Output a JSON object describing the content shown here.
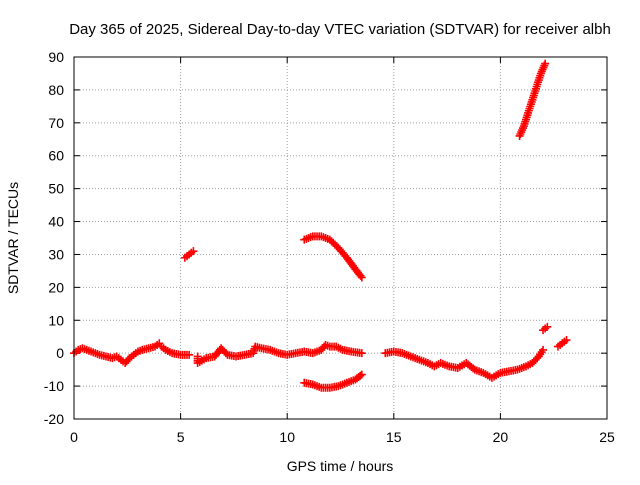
{
  "chart_data": {
    "type": "scatter",
    "title": "Day 365 of 2025, Sidereal Day-to-day VTEC variation (SDTVAR) for receiver albh",
    "xlabel": "GPS time / hours",
    "ylabel": "SDTVAR / TECUs",
    "xlim": [
      0,
      25
    ],
    "ylim": [
      -20,
      90
    ],
    "xticks": [
      0,
      5,
      10,
      15,
      20,
      25
    ],
    "yticks": [
      -20,
      -10,
      0,
      10,
      20,
      30,
      40,
      50,
      60,
      70,
      80,
      90
    ],
    "grid": true,
    "marker": "+",
    "series_color": "#ff0000",
    "series": [
      {
        "name": "cluster-main-1",
        "points": [
          [
            0,
            0
          ],
          [
            0.2,
            1
          ],
          [
            0.4,
            1.5
          ],
          [
            0.6,
            1
          ],
          [
            0.8,
            0.5
          ],
          [
            1.0,
            0
          ],
          [
            1.2,
            -0.5
          ],
          [
            1.5,
            -1
          ],
          [
            1.8,
            -1.5
          ],
          [
            2.0,
            -1
          ],
          [
            2.2,
            -2
          ],
          [
            2.4,
            -3
          ],
          [
            2.6,
            -1.5
          ],
          [
            2.8,
            -0.5
          ],
          [
            3.0,
            0.5
          ],
          [
            3.2,
            1
          ],
          [
            3.5,
            1.5
          ],
          [
            3.8,
            2
          ],
          [
            4.0,
            3
          ],
          [
            4.1,
            2
          ],
          [
            4.3,
            1
          ],
          [
            4.6,
            0
          ],
          [
            5.0,
            -0.5
          ],
          [
            5.4,
            -0.5
          ]
        ]
      },
      {
        "name": "cluster-main-2",
        "points": [
          [
            5.8,
            -1
          ],
          [
            5.8,
            -3
          ],
          [
            6.2,
            -1.5
          ],
          [
            6.6,
            -1
          ],
          [
            6.9,
            1.5
          ],
          [
            7.2,
            -0.5
          ],
          [
            7.6,
            -1
          ],
          [
            8.0,
            -0.5
          ],
          [
            8.4,
            0
          ],
          [
            8.5,
            2
          ],
          [
            8.8,
            1.5
          ],
          [
            9.2,
            1
          ],
          [
            9.6,
            0
          ],
          [
            10.0,
            -0.5
          ],
          [
            10.4,
            0
          ],
          [
            10.8,
            0.5
          ],
          [
            11.2,
            0
          ],
          [
            11.6,
            1
          ],
          [
            11.8,
            2.5
          ],
          [
            12.0,
            2
          ],
          [
            12.3,
            2
          ],
          [
            12.6,
            1
          ],
          [
            13.0,
            0.5
          ],
          [
            13.5,
            0
          ]
        ]
      },
      {
        "name": "cluster-main-3",
        "points": [
          [
            14.6,
            0
          ],
          [
            15.0,
            0.5
          ],
          [
            15.4,
            0
          ],
          [
            15.8,
            -1
          ],
          [
            16.2,
            -2
          ],
          [
            16.6,
            -3
          ],
          [
            16.9,
            -4
          ],
          [
            17.2,
            -3
          ],
          [
            17.6,
            -4
          ],
          [
            18.0,
            -4.5
          ],
          [
            18.4,
            -3
          ],
          [
            18.8,
            -5
          ],
          [
            19.2,
            -6
          ],
          [
            19.6,
            -7.5
          ],
          [
            20.0,
            -6
          ],
          [
            20.4,
            -5.5
          ],
          [
            20.8,
            -5
          ],
          [
            21.2,
            -4
          ],
          [
            21.5,
            -3
          ],
          [
            21.8,
            -1
          ],
          [
            22.0,
            1
          ]
        ]
      },
      {
        "name": "arc-upper",
        "points": [
          [
            10.8,
            34.5
          ],
          [
            11.2,
            35.5
          ],
          [
            11.6,
            35.5
          ],
          [
            12.0,
            34.5
          ],
          [
            12.4,
            32
          ],
          [
            12.8,
            29
          ],
          [
            13.2,
            25.5
          ],
          [
            13.5,
            23
          ]
        ]
      },
      {
        "name": "arc-lower",
        "points": [
          [
            10.8,
            -9
          ],
          [
            11.2,
            -9.5
          ],
          [
            11.6,
            -10.5
          ],
          [
            12.0,
            -10.5
          ],
          [
            12.4,
            -10
          ],
          [
            12.8,
            -9
          ],
          [
            13.2,
            -8
          ],
          [
            13.5,
            -6.5
          ]
        ]
      },
      {
        "name": "short-segment",
        "points": [
          [
            5.2,
            29
          ],
          [
            5.4,
            30
          ],
          [
            5.6,
            31
          ]
        ]
      },
      {
        "name": "rising-segment",
        "points": [
          [
            20.9,
            66
          ],
          [
            21.1,
            69
          ],
          [
            21.3,
            73
          ],
          [
            21.5,
            77
          ],
          [
            21.7,
            81
          ],
          [
            21.9,
            85
          ],
          [
            22.1,
            88
          ]
        ]
      },
      {
        "name": "small-segment-1",
        "points": [
          [
            22.0,
            7
          ],
          [
            22.2,
            8
          ]
        ]
      },
      {
        "name": "small-segment-2",
        "points": [
          [
            22.7,
            2
          ],
          [
            22.9,
            3
          ],
          [
            23.1,
            4
          ]
        ]
      }
    ]
  }
}
